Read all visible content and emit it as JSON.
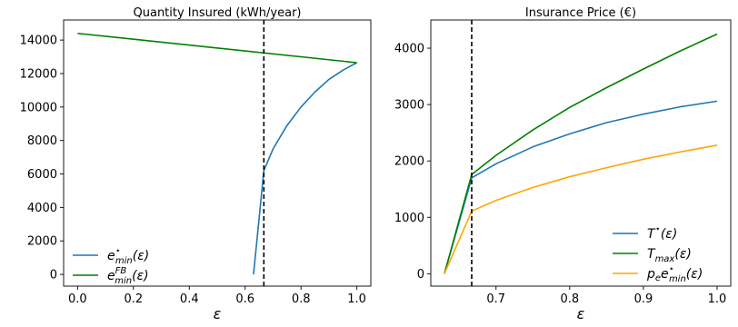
{
  "colors": {
    "blue": "#1f77b4",
    "green": "#008000",
    "orange": "#ffa500",
    "vline": "#000000"
  },
  "chart_data": [
    {
      "type": "line",
      "title": "Quantity Insured (kWh/year)",
      "xlabel": "ε",
      "ylabel": "",
      "xlim": [
        -0.05,
        1.05
      ],
      "ylim": [
        -700,
        15200
      ],
      "xticks": [
        0.0,
        0.2,
        0.4,
        0.6,
        0.8,
        1.0
      ],
      "xtick_labels": [
        "0.0",
        "0.2",
        "0.4",
        "0.6",
        "0.8",
        "1.0"
      ],
      "yticks": [
        0,
        2000,
        4000,
        6000,
        8000,
        10000,
        12000,
        14000
      ],
      "ytick_labels": [
        "0",
        "2000",
        "4000",
        "6000",
        "8000",
        "10000",
        "12000",
        "14000"
      ],
      "vline_x": 0.667,
      "legend_position": "lower-left",
      "series": [
        {
          "name": "e*min(ε)",
          "legend": {
            "base": "e",
            "sup": "⋆",
            "sub": "min",
            "arg": "(ε)"
          },
          "color": "blue",
          "x": [
            0.63,
            0.667,
            0.7,
            0.75,
            0.8,
            0.85,
            0.9,
            0.95,
            1.0
          ],
          "y": [
            0,
            6200,
            7500,
            8900,
            10000,
            10900,
            11650,
            12200,
            12650
          ]
        },
        {
          "name": "eFBmin(ε)",
          "legend": {
            "base": "e",
            "sup": "FB",
            "sub": "min",
            "arg": "(ε)"
          },
          "color": "green",
          "x": [
            0.0,
            1.0
          ],
          "y": [
            14400,
            12650
          ]
        }
      ]
    },
    {
      "type": "line",
      "title": "Insurance Price (€)",
      "xlabel": "ε",
      "ylabel": "",
      "xlim": [
        0.6115,
        1.0185
      ],
      "ylim": [
        -220,
        4500
      ],
      "xticks": [
        0.7,
        0.8,
        0.9,
        1.0
      ],
      "xtick_labels": [
        "0.7",
        "0.8",
        "0.9",
        "1.0"
      ],
      "yticks": [
        0,
        1000,
        2000,
        3000,
        4000
      ],
      "ytick_labels": [
        "0",
        "1000",
        "2000",
        "3000",
        "4000"
      ],
      "vline_x": 0.667,
      "legend_position": "lower-right",
      "series": [
        {
          "name": "T*(ε)",
          "legend": {
            "base": "T",
            "sup": "⋆",
            "sub": "",
            "arg": "(ε)"
          },
          "color": "blue",
          "x": [
            0.63,
            0.667,
            0.7,
            0.75,
            0.8,
            0.85,
            0.9,
            0.95,
            1.0
          ],
          "y": [
            0,
            1700,
            1950,
            2250,
            2480,
            2680,
            2830,
            2960,
            3060
          ]
        },
        {
          "name": "Tmax(ε)",
          "legend": {
            "base": "T",
            "sup": "",
            "sub": "max",
            "arg": "(ε)"
          },
          "color": "green",
          "x": [
            0.63,
            0.667,
            0.7,
            0.75,
            0.8,
            0.85,
            0.9,
            0.95,
            1.0
          ],
          "y": [
            0,
            1760,
            2100,
            2550,
            2950,
            3300,
            3630,
            3950,
            4250
          ]
        },
        {
          "name": "pee*min(ε)",
          "legend": {
            "base": "p",
            "sub0": "e",
            "base2": "e",
            "sup": "⋆",
            "sub": "min",
            "arg": "(ε)"
          },
          "color": "orange",
          "x": [
            0.63,
            0.667,
            0.7,
            0.75,
            0.8,
            0.85,
            0.9,
            0.95,
            1.0
          ],
          "y": [
            0,
            1110,
            1300,
            1530,
            1720,
            1880,
            2030,
            2160,
            2280
          ]
        }
      ]
    }
  ]
}
